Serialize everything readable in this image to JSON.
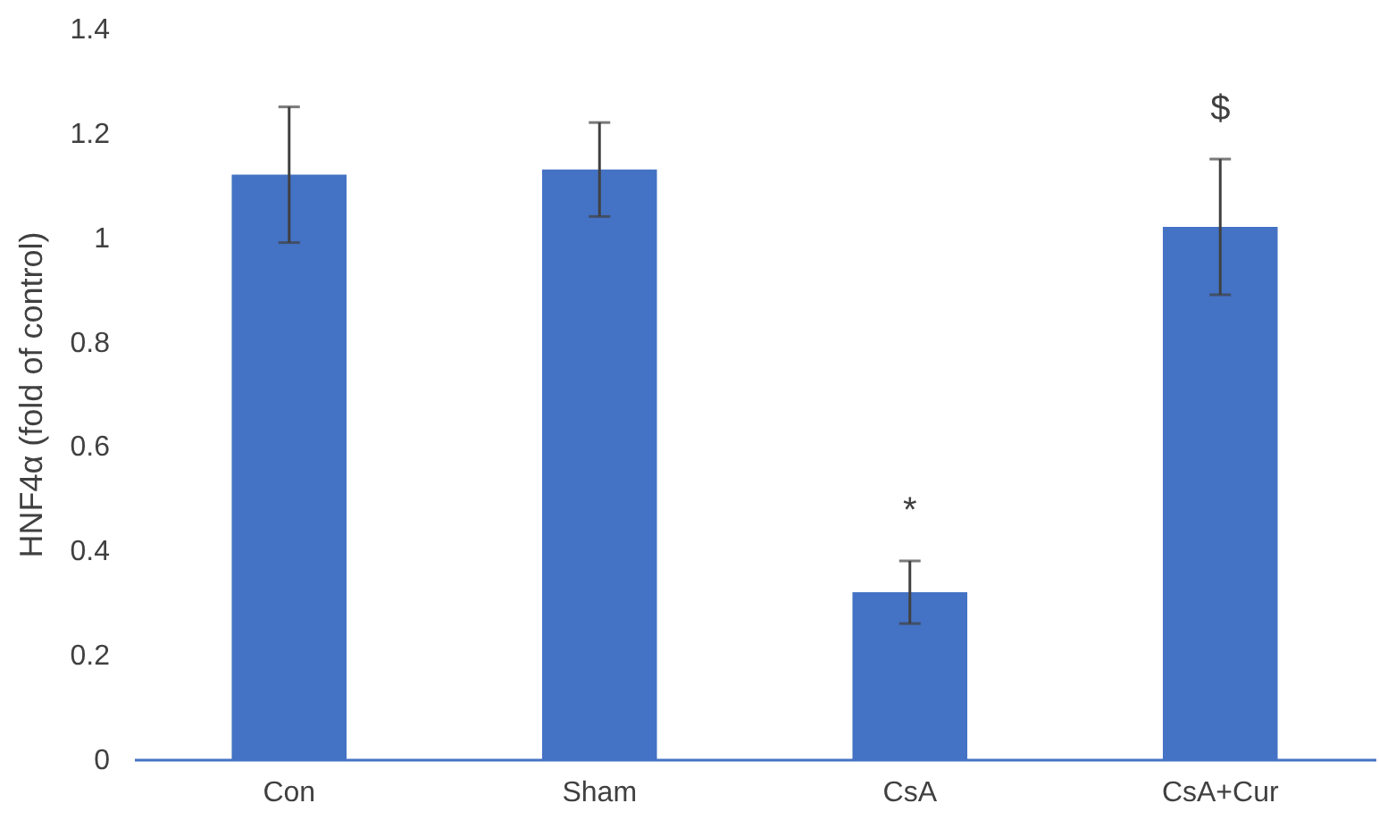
{
  "chart_data": {
    "type": "bar",
    "ylabel": "HNF4α (fold of control)",
    "categories": [
      "Con",
      "Sham",
      "CsA",
      "CsA+Cur"
    ],
    "values": [
      1.12,
      1.13,
      0.32,
      1.02
    ],
    "errors": [
      0.13,
      0.09,
      0.06,
      0.13
    ],
    "color": "#4472c4",
    "ylim": [
      0,
      1.4
    ],
    "yticks": [
      0,
      0.2,
      0.4,
      0.6,
      0.8,
      1,
      1.2,
      1.4
    ],
    "grid": false,
    "annotations": [
      {
        "text": "*",
        "x": "CsA",
        "y": 0.38
      },
      {
        "text": "$",
        "x": "CsA+Cur",
        "y": 1.15
      }
    ]
  }
}
